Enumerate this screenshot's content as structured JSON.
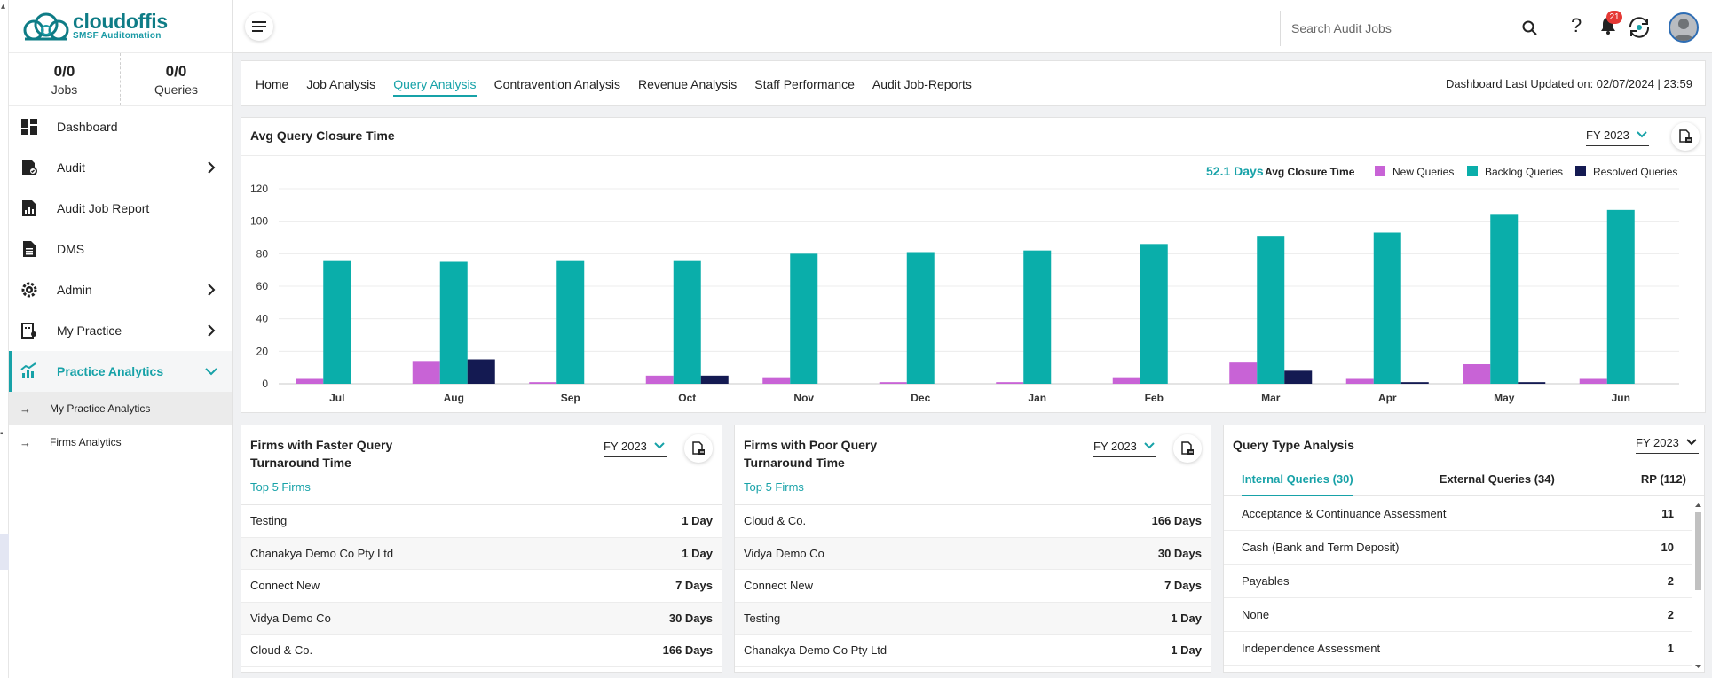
{
  "app": {
    "brand": "cloudoffis",
    "tagline": "SMSF Auditomation"
  },
  "stats": [
    {
      "value": "0/0",
      "label": "Jobs"
    },
    {
      "value": "0/0",
      "label": "Queries"
    }
  ],
  "sidebar": {
    "items": [
      {
        "label": "Dashboard",
        "icon": "dashboard-icon"
      },
      {
        "label": "Audit",
        "icon": "audit-icon"
      },
      {
        "label": "Audit Job Report",
        "icon": "report-icon"
      },
      {
        "label": "DMS",
        "icon": "document-icon"
      },
      {
        "label": "Admin",
        "icon": "admin-gear-icon"
      },
      {
        "label": "My Practice",
        "icon": "practice-icon"
      },
      {
        "label": "Practice Analytics",
        "icon": "analytics-icon"
      }
    ],
    "sub_items": [
      {
        "label": "My Practice Analytics"
      },
      {
        "label": "Firms Analytics"
      }
    ]
  },
  "topbar": {
    "search_placeholder": "Search Audit Jobs",
    "help": "?",
    "notifications": "21"
  },
  "tabs": [
    {
      "label": "Home"
    },
    {
      "label": "Job Analysis"
    },
    {
      "label": "Query Analysis"
    },
    {
      "label": "Contravention Analysis"
    },
    {
      "label": "Revenue Analysis"
    },
    {
      "label": "Staff Performance"
    },
    {
      "label": "Audit Job-Reports"
    }
  ],
  "updated": "Dashboard Last Updated on: 02/07/2024 | 23:59",
  "closure_card": {
    "title": "Avg Query Closure Time",
    "fy": "FY 2023",
    "avg_value": "52.1 Days",
    "avg_label": "Avg Closure Time"
  },
  "colors": {
    "accent": "#17a2a8",
    "new": "#c863d6",
    "backlog": "#0aaeaa",
    "resolved": "#141a52"
  },
  "chart_data": {
    "type": "bar",
    "categories": [
      "Jul",
      "Aug",
      "Sep",
      "Oct",
      "Nov",
      "Dec",
      "Jan",
      "Feb",
      "Mar",
      "Apr",
      "May",
      "Jun"
    ],
    "series": [
      {
        "name": "New Queries",
        "values": [
          3,
          14,
          1,
          5,
          4,
          1,
          1,
          4,
          13,
          3,
          12,
          3
        ]
      },
      {
        "name": "Backlog Queries",
        "values": [
          76,
          75,
          76,
          76,
          80,
          81,
          82,
          86,
          91,
          93,
          104,
          107
        ]
      },
      {
        "name": "Resolved Queries",
        "values": [
          0,
          15,
          0,
          5,
          0,
          0,
          0,
          0,
          8,
          1,
          1,
          0
        ]
      }
    ],
    "yticks": [
      "0",
      "20",
      "40",
      "60",
      "80",
      "100",
      "120"
    ],
    "ylim": [
      0,
      120
    ],
    "grid": true,
    "legend": "top-right"
  },
  "faster": {
    "title": "Firms with Faster Query Turnaround Time",
    "fy": "FY 2023",
    "link": "Top 5 Firms",
    "rows": [
      {
        "name": "Testing",
        "value": "1 Day"
      },
      {
        "name": "Chanakya Demo Co Pty Ltd",
        "value": "1 Day"
      },
      {
        "name": "Connect New",
        "value": "7 Days"
      },
      {
        "name": "Vidya Demo Co",
        "value": "30 Days"
      },
      {
        "name": "Cloud & Co.",
        "value": "166 Days"
      }
    ]
  },
  "poor": {
    "title": "Firms with Poor Query Turnaround Time",
    "fy": "FY 2023",
    "link": "Top 5 Firms",
    "rows": [
      {
        "name": "Cloud & Co.",
        "value": "166 Days"
      },
      {
        "name": "Vidya Demo Co",
        "value": "30 Days"
      },
      {
        "name": "Connect New",
        "value": "7 Days"
      },
      {
        "name": "Testing",
        "value": "1 Day"
      },
      {
        "name": "Chanakya Demo Co Pty Ltd",
        "value": "1 Day"
      }
    ]
  },
  "query_type": {
    "title": "Query Type Analysis",
    "fy": "FY 2023",
    "tabs": [
      {
        "label": "Internal Queries (30)"
      },
      {
        "label": "External Queries (34)"
      },
      {
        "label": "RP (112)"
      }
    ],
    "rows": [
      {
        "name": "Acceptance & Continuance Assessment",
        "value": "11"
      },
      {
        "name": "Cash (Bank and Term Deposit)",
        "value": "10"
      },
      {
        "name": "Payables",
        "value": "2"
      },
      {
        "name": "None",
        "value": "2"
      },
      {
        "name": "Independence Assessment",
        "value": "1"
      }
    ]
  }
}
